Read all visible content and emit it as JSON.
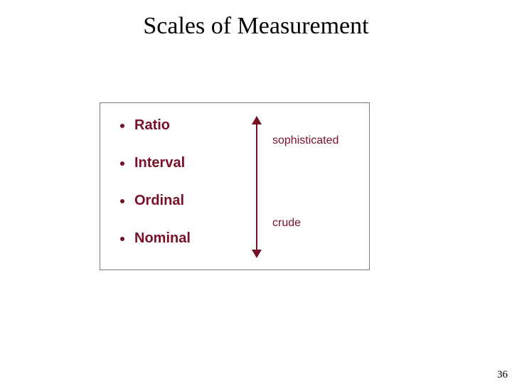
{
  "title": "Scales of Measurement",
  "page_number": "36",
  "colors": {
    "accent": "#7a1025",
    "border": "#7a7a7a",
    "title": "#000000"
  },
  "box": {
    "items": [
      {
        "label": "Ratio"
      },
      {
        "label": "Interval"
      },
      {
        "label": "Ordinal"
      },
      {
        "label": "Nominal"
      }
    ],
    "annotation_top": "sophisticated",
    "annotation_bottom": "crude"
  },
  "typography": {
    "title_fontsize": 34,
    "item_fontsize": 20,
    "annotation_fontsize": 16,
    "pagenum_fontsize": 15
  }
}
